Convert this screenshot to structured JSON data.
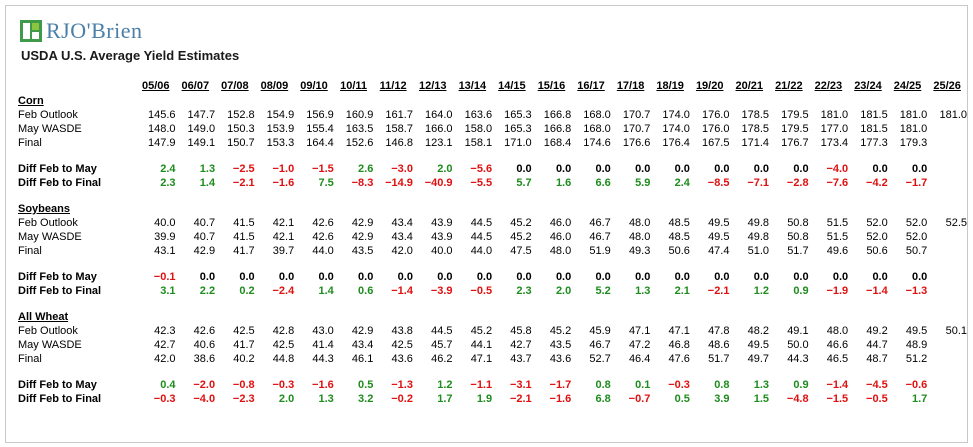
{
  "brand": {
    "logo_text": "RJO'Brien",
    "logo_icon": "rjo-obrien-logo-icon",
    "accent": "#4a7fa8",
    "positive_color": "#1e8c1e",
    "negative_color": "#e01010"
  },
  "title": "USDA U.S. Average Yield Estimates",
  "years": [
    "05/06",
    "06/07",
    "07/08",
    "08/09",
    "09/10",
    "10/11",
    "11/12",
    "12/13",
    "13/14",
    "14/15",
    "15/16",
    "16/17",
    "17/18",
    "18/19",
    "19/20",
    "20/21",
    "21/22",
    "22/23",
    "23/24",
    "24/25",
    "25/26"
  ],
  "row_labels": {
    "feb": "Feb Outlook",
    "may": "May WASDE",
    "final": "Final",
    "diff_may": "Diff Feb to May",
    "diff_final": "Diff Feb to Final"
  },
  "sections": [
    {
      "name": "Corn",
      "feb": [
        "145.6",
        "147.7",
        "152.8",
        "154.9",
        "156.9",
        "160.9",
        "161.7",
        "164.0",
        "163.6",
        "165.3",
        "166.8",
        "168.0",
        "170.7",
        "174.0",
        "176.0",
        "178.5",
        "179.5",
        "181.0",
        "181.5",
        "181.0",
        "181.0"
      ],
      "may": [
        "148.0",
        "149.0",
        "150.3",
        "153.9",
        "155.4",
        "163.5",
        "158.7",
        "166.0",
        "158.0",
        "165.3",
        "166.8",
        "168.0",
        "170.7",
        "174.0",
        "176.0",
        "178.5",
        "179.5",
        "177.0",
        "181.5",
        "181.0",
        ""
      ],
      "final": [
        "147.9",
        "149.1",
        "150.7",
        "153.3",
        "164.4",
        "152.6",
        "146.8",
        "123.1",
        "158.1",
        "171.0",
        "168.4",
        "174.6",
        "176.6",
        "176.4",
        "167.5",
        "171.4",
        "176.7",
        "173.4",
        "177.3",
        "179.3",
        ""
      ],
      "diff_may": [
        "2.4",
        "1.3",
        "-2.5",
        "-1.0",
        "-1.5",
        "2.6",
        "-3.0",
        "2.0",
        "-5.6",
        "0.0",
        "0.0",
        "0.0",
        "0.0",
        "0.0",
        "0.0",
        "0.0",
        "0.0",
        "-4.0",
        "0.0",
        "0.0",
        ""
      ],
      "diff_final": [
        "2.3",
        "1.4",
        "-2.1",
        "-1.6",
        "7.5",
        "-8.3",
        "-14.9",
        "-40.9",
        "-5.5",
        "5.7",
        "1.6",
        "6.6",
        "5.9",
        "2.4",
        "-8.5",
        "-7.1",
        "-2.8",
        "-7.6",
        "-4.2",
        "-1.7",
        ""
      ]
    },
    {
      "name": "Soybeans",
      "feb": [
        "40.0",
        "40.7",
        "41.5",
        "42.1",
        "42.6",
        "42.9",
        "43.4",
        "43.9",
        "44.5",
        "45.2",
        "46.0",
        "46.7",
        "48.0",
        "48.5",
        "49.5",
        "49.8",
        "50.8",
        "51.5",
        "52.0",
        "52.0",
        "52.5"
      ],
      "may": [
        "39.9",
        "40.7",
        "41.5",
        "42.1",
        "42.6",
        "42.9",
        "43.4",
        "43.9",
        "44.5",
        "45.2",
        "46.0",
        "46.7",
        "48.0",
        "48.5",
        "49.5",
        "49.8",
        "50.8",
        "51.5",
        "52.0",
        "52.0",
        ""
      ],
      "final": [
        "43.1",
        "42.9",
        "41.7",
        "39.7",
        "44.0",
        "43.5",
        "42.0",
        "40.0",
        "44.0",
        "47.5",
        "48.0",
        "51.9",
        "49.3",
        "50.6",
        "47.4",
        "51.0",
        "51.7",
        "49.6",
        "50.6",
        "50.7",
        ""
      ],
      "diff_may": [
        "-0.1",
        "0.0",
        "0.0",
        "0.0",
        "0.0",
        "0.0",
        "0.0",
        "0.0",
        "0.0",
        "0.0",
        "0.0",
        "0.0",
        "0.0",
        "0.0",
        "0.0",
        "0.0",
        "0.0",
        "0.0",
        "0.0",
        "0.0",
        ""
      ],
      "diff_final": [
        "3.1",
        "2.2",
        "0.2",
        "-2.4",
        "1.4",
        "0.6",
        "-1.4",
        "-3.9",
        "-0.5",
        "2.3",
        "2.0",
        "5.2",
        "1.3",
        "2.1",
        "-2.1",
        "1.2",
        "0.9",
        "-1.9",
        "-1.4",
        "-1.3",
        ""
      ]
    },
    {
      "name": "All Wheat",
      "feb": [
        "42.3",
        "42.6",
        "42.5",
        "42.8",
        "43.0",
        "42.9",
        "43.8",
        "44.5",
        "45.2",
        "45.8",
        "45.2",
        "45.9",
        "47.1",
        "47.1",
        "47.8",
        "48.2",
        "49.1",
        "48.0",
        "49.2",
        "49.5",
        "50.1"
      ],
      "may": [
        "42.7",
        "40.6",
        "41.7",
        "42.5",
        "41.4",
        "43.4",
        "42.5",
        "45.7",
        "44.1",
        "42.7",
        "43.5",
        "46.7",
        "47.2",
        "46.8",
        "48.6",
        "49.5",
        "50.0",
        "46.6",
        "44.7",
        "48.9",
        ""
      ],
      "final": [
        "42.0",
        "38.6",
        "40.2",
        "44.8",
        "44.3",
        "46.1",
        "43.6",
        "46.2",
        "47.1",
        "43.7",
        "43.6",
        "52.7",
        "46.4",
        "47.6",
        "51.7",
        "49.7",
        "44.3",
        "46.5",
        "48.7",
        "51.2",
        ""
      ],
      "diff_may": [
        "0.4",
        "-2.0",
        "-0.8",
        "-0.3",
        "-1.6",
        "0.5",
        "-1.3",
        "1.2",
        "-1.1",
        "-3.1",
        "-1.7",
        "0.8",
        "0.1",
        "-0.3",
        "0.8",
        "1.3",
        "0.9",
        "-1.4",
        "-4.5",
        "-0.6",
        ""
      ],
      "diff_final": [
        "-0.3",
        "-4.0",
        "-2.3",
        "2.0",
        "1.3",
        "3.2",
        "-0.2",
        "1.7",
        "1.9",
        "-2.1",
        "-1.6",
        "6.8",
        "-0.7",
        "0.5",
        "3.9",
        "1.5",
        "-4.8",
        "-1.5",
        "-0.5",
        "1.7",
        ""
      ]
    }
  ]
}
